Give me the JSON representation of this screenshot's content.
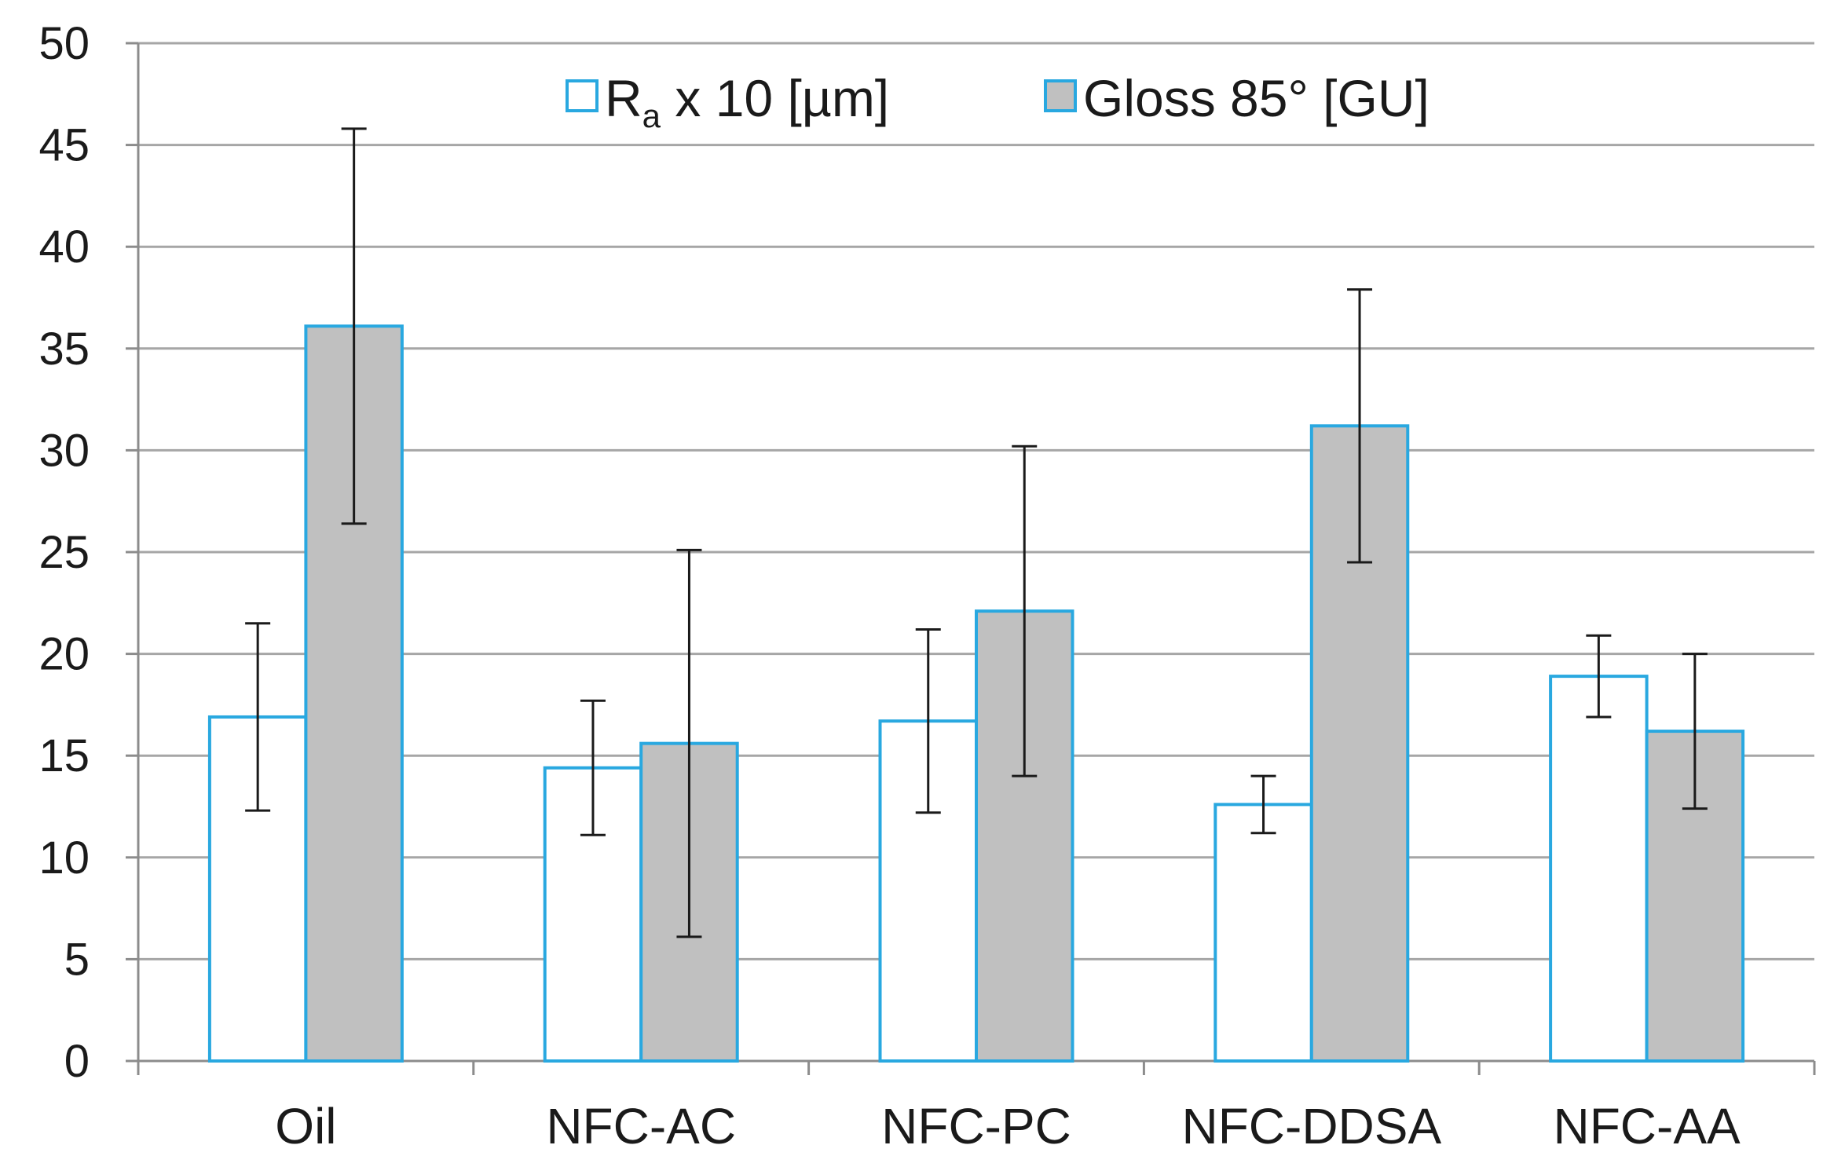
{
  "chart_data": {
    "type": "bar",
    "title": "",
    "xlabel": "",
    "ylabel": "",
    "ylim": [
      0,
      50
    ],
    "yticks": [
      0,
      5,
      10,
      15,
      20,
      25,
      30,
      35,
      40,
      45,
      50
    ],
    "grid": true,
    "legend_position": "top-center",
    "categories": [
      "Oil",
      "NFC-AC",
      "NFC-PC",
      "NFC-DDSA",
      "NFC-AA"
    ],
    "series": [
      {
        "name": "Ra x 10 [µm]",
        "label_main": "R",
        "label_sub": "a",
        "label_rest": " x 10 [µm]",
        "fill": "#ffffff",
        "stroke": "#29a8e0",
        "values": [
          16.9,
          14.4,
          16.7,
          12.6,
          18.9
        ],
        "errors": [
          4.6,
          3.3,
          4.5,
          1.4,
          2.0
        ]
      },
      {
        "name": "Gloss 85° [GU]",
        "label_main": "Gloss 85° [GU]",
        "label_sub": "",
        "label_rest": "",
        "fill": "#c0c0c0",
        "stroke": "#29a8e0",
        "values": [
          36.1,
          15.6,
          22.1,
          31.2,
          16.2
        ],
        "errors": [
          9.7,
          9.5,
          8.1,
          6.7,
          3.8
        ]
      }
    ],
    "colors": {
      "grid": "#a6a6a6",
      "axis": "#8c8c8c",
      "error_bar": "#1a1a1a"
    }
  }
}
